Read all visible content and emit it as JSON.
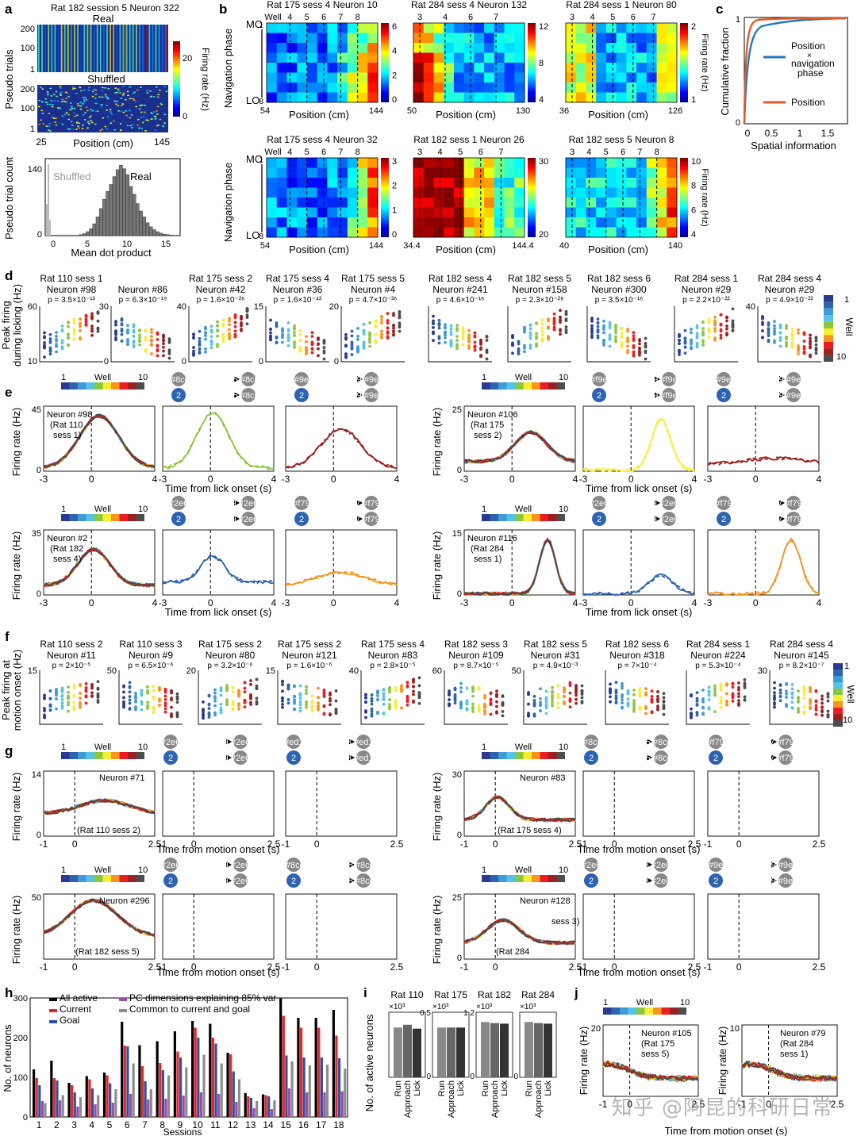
{
  "panel_letters": [
    "a",
    "b",
    "c",
    "d",
    "e",
    "f",
    "g",
    "h",
    "i",
    "j"
  ],
  "a": {
    "title": "Rat 182 session 5 Neuron 322",
    "real": "Real",
    "shuffled": "Shuffled",
    "ylabel": "Pseudo trials",
    "yticks": [
      "200",
      "100",
      "1"
    ],
    "xlabel": "Position (cm)",
    "xticks": [
      "25",
      "145"
    ],
    "cbar_label": "Firing rate (Hz)",
    "cbar_ticks": [
      "20",
      "0"
    ],
    "hist_ylabel": "Pseudo trial count",
    "hist_xlabel": "Mean dot product",
    "hist_yticks": [
      "140",
      "0"
    ],
    "hist_xticks": [
      "0",
      "5",
      "10",
      "15"
    ],
    "hist_shuffled": "Shuffled",
    "hist_real": "Real"
  },
  "b": {
    "ylabel": "Navigation phase",
    "mo": "MO",
    "lo": "LO",
    "xlabel": "Position (cm)",
    "cbar_label": "Firing rate (Hz)",
    "panels": [
      {
        "title": "Rat 175 sess 4 Neuron 10",
        "wells": [
          "Well",
          "4",
          "5",
          "6",
          "7",
          "8"
        ],
        "x0": "54",
        "x1": "144",
        "ticks": [
          "6",
          "4",
          "2",
          "0"
        ]
      },
      {
        "title": "Rat 284 sess 4 Neuron 132",
        "wells": [
          "3",
          "4",
          "6",
          "7"
        ],
        "x0": "50",
        "x1": "130",
        "ticks": [
          "12",
          "8",
          "4"
        ]
      },
      {
        "title": "Rat 284 sess 1 Neuron 80",
        "wells": [
          "3",
          "4",
          "5",
          "6",
          "7"
        ],
        "x0": "36",
        "x1": "126",
        "ticks": [
          "2",
          "1"
        ]
      },
      {
        "title": "Rat 175 sess 4 Neuron 32",
        "wells": [
          "Well",
          "4",
          "5",
          "6",
          "7",
          "8"
        ],
        "x0": "54",
        "x1": "144",
        "ticks": [
          "3",
          "2",
          "1",
          "0"
        ]
      },
      {
        "title": "Rat 182 sess 1 Neuron 26",
        "wells": [
          "3",
          "4",
          "5",
          "6",
          "7"
        ],
        "x0": "34.4",
        "x1": "144.4",
        "ticks": [
          "30",
          "20"
        ]
      },
      {
        "title": "Rat 182 sess 5 Neuron 8",
        "wells": [
          "3",
          "4",
          "5",
          "6",
          "7",
          "8"
        ],
        "x0": "40",
        "x1": "140",
        "ticks": [
          "10",
          "8",
          "6",
          "4"
        ]
      }
    ]
  },
  "c": {
    "ylabel": "Cumulative fraction",
    "xlabel": "Spatial information",
    "xticks": [
      "0",
      "0.5",
      "1",
      "1.5"
    ],
    "yticks": [
      "1",
      "0"
    ],
    "legend1": "Position",
    "legend1b": "×",
    "legend1c": "navigation",
    "legend1d": "phase",
    "legend2": "Position"
  },
  "d": {
    "ylabel1": "Peak firing",
    "ylabel2": "during licking (Hz)",
    "cbar_label": "Well",
    "cbar_top": "1",
    "cbar_bottom": "10",
    "panels": [
      {
        "title": "Rat 110 sess 1",
        "neuron": "Neuron #98",
        "p": "p = 3.5×10⁻¹³",
        "ytop": "60",
        "ybot": "10"
      },
      {
        "title": "",
        "neuron": "Neuron #86",
        "p": "p = 6.3×10⁻¹⁹",
        "ytop": "30",
        "ybot": "0"
      },
      {
        "title": "Rat 175 sess 2",
        "neuron": "Neuron #42",
        "p": "p = 1.6×10⁻²⁶",
        "ytop": "40",
        "ybot": "0"
      },
      {
        "title": "Rat 175 sess 4",
        "neuron": "Neuron #36",
        "p": "p = 1.6×10⁻⁴²",
        "ytop": "15",
        "ybot": "0"
      },
      {
        "title": "Rat 175 sess 5",
        "neuron": "Neuron #4",
        "p": "p = 4.7×10⁻³⁶",
        "ytop": "20",
        "ybot": "0"
      },
      {
        "title": "Rat 182 sess 4",
        "neuron": "Neuron #241",
        "p": "p = 4.6×10⁻¹⁶",
        "ytop": "",
        "ybot": ""
      },
      {
        "title": "Rat 182 sess 5",
        "neuron": "Neuron #158",
        "p": "p = 2.3×10⁻²⁸",
        "ytop": "",
        "ybot": ""
      },
      {
        "title": "Rat 182 sess 6",
        "neuron": "Neuron #300",
        "p": "p = 3.5×10⁻¹⁶",
        "ytop": "",
        "ybot": ""
      },
      {
        "title": "Rat 284 sess 1",
        "neuron": "Neuron #29",
        "p": "p = 2.2×10⁻²²",
        "ytop": "",
        "ybot": ""
      },
      {
        "title": "Rat 284 sess 4",
        "neuron": "Neuron #29",
        "p": "p = 4.9×10⁻²²",
        "ytop": "40",
        "ybot": ""
      }
    ]
  },
  "e": {
    "ylabel": "Firing rate (Hz)",
    "xlabel": "Time from lick onset (s)",
    "well": "Well",
    "well1": "1",
    "well10": "10",
    "xticks": [
      "-3",
      "0",
      "4"
    ],
    "panels": [
      {
        "neuron": "Neuron #98",
        "info1": "(Rat 110",
        "info2": "sess 1)",
        "ytop": "45",
        "ybot": "0"
      },
      {
        "neuron": "Neuron #106",
        "info1": "(Rat 175",
        "info2": "sess 2)",
        "ytop": "25",
        "ybot": "0"
      },
      {
        "neuron": "Neuron #2",
        "info1": "(Rat 182",
        "info2": "sess 4)",
        "ytop": "35",
        "ybot": "0"
      },
      {
        "neuron": "Neuron #116",
        "info1": "(Rat 284",
        "info2": "sess 1)",
        "ytop": "15",
        "ybot": "0"
      }
    ]
  },
  "f": {
    "ylabel1": "Peak firing at",
    "ylabel2": "motion onset (Hz)",
    "cbar_label": "Well",
    "cbar_top": "1",
    "cbar_bottom": "10",
    "panels": [
      {
        "title": "Rat 110 sess 2",
        "neuron": "Neuron #11",
        "p": "p = 2×10⁻⁵",
        "ytop": "15"
      },
      {
        "title": "Rat 110 sess 3",
        "neuron": "Neuron #9",
        "p": "p = 6.5×10⁻⁶",
        "ytop": "50"
      },
      {
        "title": "Rat 175 sess 2",
        "neuron": "Neuron #80",
        "p": "p = 3.2×10⁻⁶",
        "ytop": "20"
      },
      {
        "title": "Rat 175 sess 2",
        "neuron": "Neuron #121",
        "p": "p = 1.6×10⁻⁶",
        "ytop": "15"
      },
      {
        "title": "Rat 175 sess 4",
        "neuron": "Neuron #83",
        "p": "p = 2.8×10⁻⁵",
        "ytop": "40"
      },
      {
        "title": "Rat 182 sess 3",
        "neuron": "Neuron #109",
        "p": "p = 8.7×10⁻⁵",
        "ytop": "60"
      },
      {
        "title": "Rat 182 sess 5",
        "neuron": "Neuron #31",
        "p": "p = 4.9×10⁻³",
        "ytop": "50"
      },
      {
        "title": "Rat 182 sess 6",
        "neuron": "Neuron #318",
        "p": "p = 7×10⁻⁴",
        "ytop": ""
      },
      {
        "title": "Rat 284 sess 1",
        "neuron": "Neuron #224",
        "p": "p = 5.3×10⁻⁴",
        "ytop": ""
      },
      {
        "title": "Rat 284 sess 4",
        "neuron": "Neuron #145",
        "p": "p = 8.2×10⁻⁷",
        "ytop": "30"
      }
    ]
  },
  "g": {
    "ylabel": "Firing rate (Hz)",
    "xlabel": "Time from motion onset (s)",
    "xticks": [
      "-1",
      "0",
      "2.5"
    ],
    "panels": [
      {
        "neuron": "Neuron #71",
        "info": "(Rat 110 sess 2)",
        "ytop": "14",
        "ybot": "0"
      },
      {
        "neuron": "Neuron #83",
        "info": "(Rat 175 sess 4)",
        "ytop": "30",
        "ybot": "0"
      },
      {
        "neuron": "Neuron #296",
        "info": "(Rat 182 sess 5)",
        "ytop": "50",
        "ybot": ""
      },
      {
        "neuron": "Neuron #128",
        "info": "(Rat 284",
        "info2": "sess 3)",
        "ytop": "25",
        "ybot": "0"
      }
    ]
  },
  "h": {
    "ylabel": "No. of neurons",
    "xlabel": "Sessions",
    "yticks": [
      "300",
      "200",
      "100",
      "0"
    ],
    "legend": [
      "All active",
      "Current",
      "Goal",
      "PC dimensions explaining 85% var",
      "Common to current and goal"
    ]
  },
  "i": {
    "ylabel": "No. of active neurons",
    "xcats": [
      "Run",
      "Approach",
      "Lick"
    ],
    "unit": "×10³",
    "panels": [
      {
        "title": "Rat 110",
        "ytop": "",
        "ybot": ""
      },
      {
        "title": "Rat 175",
        "ytop": "0.5",
        "ybot": "0"
      },
      {
        "title": "Rat 182",
        "ytop": "1.2",
        "ybot": "0"
      },
      {
        "title": "Rat 284",
        "ytop": "",
        "ybot": "0"
      }
    ]
  },
  "j": {
    "ylabel": "Firing rate (Hz)",
    "xlabel": "Time from motion onset (s)",
    "well": "Well",
    "well1": "1",
    "well10": "10",
    "panels": [
      {
        "neuron": "Neuron #105",
        "info1": "(Rat 175",
        "info2": "sess 5)",
        "ytop": "20"
      },
      {
        "neuron": "Neuron #79",
        "info1": "(Rat 284",
        "info2": "sess 1)",
        "ytop": "10"
      }
    ],
    "xticks": [
      "-1",
      "0",
      "2.5"
    ]
  },
  "watermark": "知乎 @阿昆的科研日常",
  "chart_data": [
    {
      "type": "bar",
      "title": "",
      "xlabel": "Sessions",
      "ylabel": "No. of neurons",
      "ylim": [
        0,
        300
      ],
      "categories": [
        "1",
        "2",
        "3",
        "4",
        "5",
        "6",
        "7",
        "8",
        "9",
        "10",
        "11",
        "12",
        "13",
        "14",
        "15",
        "16",
        "17",
        "18"
      ],
      "series": [
        {
          "name": "All active",
          "values": [
            120,
            142,
            86,
            103,
            112,
            240,
            181,
            191,
            216,
            242,
            235,
            162,
            60,
            57,
            300,
            250,
            250,
            270
          ]
        },
        {
          "name": "Current",
          "values": [
            98,
            98,
            80,
            95,
            105,
            180,
            128,
            136,
            165,
            225,
            200,
            158,
            52,
            55,
            255,
            225,
            225,
            205
          ]
        },
        {
          "name": "Goal",
          "values": [
            80,
            92,
            62,
            72,
            85,
            178,
            90,
            118,
            150,
            200,
            185,
            115,
            48,
            52,
            155,
            150,
            150,
            148
          ]
        },
        {
          "name": "PC dimensions explaining 85% var",
          "values": [
            40,
            42,
            26,
            32,
            36,
            58,
            44,
            46,
            54,
            62,
            58,
            38,
            22,
            20,
            72,
            62,
            62,
            65
          ]
        },
        {
          "name": "Common to current and goal",
          "values": [
            35,
            55,
            50,
            55,
            70,
            135,
            70,
            105,
            125,
            157,
            135,
            95,
            40,
            42,
            140,
            130,
            132,
            122
          ]
        }
      ]
    },
    {
      "type": "bar",
      "title": "",
      "ylabel": "No. of active neurons",
      "categories": [
        "Run",
        "Approach",
        "Lick"
      ],
      "series": [
        {
          "name": "Rat 110",
          "values": [
            0.9,
            0.95,
            0.88
          ]
        },
        {
          "name": "Rat 175",
          "values": [
            0.45,
            0.45,
            0.45
          ]
        },
        {
          "name": "Rat 182",
          "values": [
            1.0,
            0.98,
            0.97
          ]
        },
        {
          "name": "Rat 284",
          "values": [
            1.0,
            0.98,
            0.97
          ]
        }
      ]
    }
  ],
  "colors": {
    "well_scale": [
      "#2b3990",
      "#2e63b1",
      "#3f9ad6",
      "#55c3e8",
      "#8cc63f",
      "#f9ed32",
      "#f7941d",
      "#ed1c24",
      "#9e1f1f",
      "#4d4d4d"
    ],
    "black": "#000000",
    "red": "#e4262b",
    "blue": "#2f4fa2",
    "purple": "#9b4ea3",
    "gray": "#8c8c8c",
    "orange": "#e35b26"
  }
}
